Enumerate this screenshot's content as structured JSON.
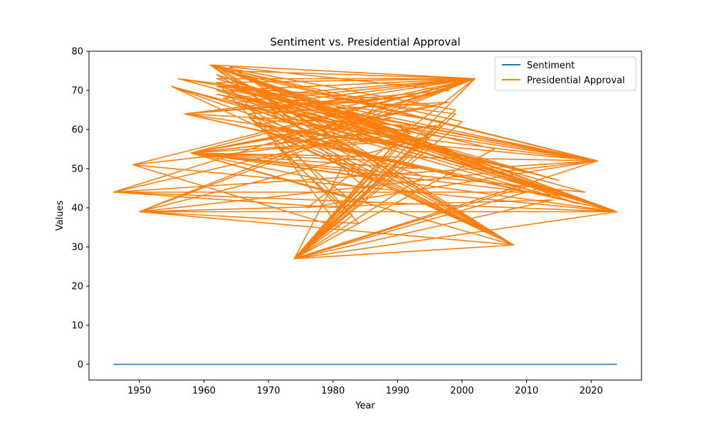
{
  "chart_data": {
    "type": "line",
    "title": "Sentiment vs. Presidential Approval",
    "xlabel": "Year",
    "ylabel": "Values",
    "xlim": [
      1942.2,
      2027.8
    ],
    "ylim": [
      -4,
      80
    ],
    "xticks": [
      1950,
      1960,
      1970,
      1980,
      1990,
      2000,
      2010,
      2020
    ],
    "yticks": [
      0,
      10,
      20,
      30,
      40,
      50,
      60,
      70,
      80
    ],
    "grid": false,
    "legend": "top-right",
    "series": [
      {
        "name": "Sentiment",
        "color": "#1f77b4",
        "x": [
          1946,
          2024
        ],
        "y": [
          0,
          0
        ]
      },
      {
        "name": "Presidential Approval",
        "color": "#ff7f0e",
        "x": [
          1961,
          2002,
          1974,
          2021,
          1958,
          2024,
          1950,
          2008,
          1964,
          1998,
          1957,
          2012,
          1946,
          1988,
          1965,
          2018,
          1955,
          1992,
          1974,
          2002,
          1961,
          2024,
          1949,
          1981,
          1966,
          1996,
          1958,
          2021,
          1974,
          2000,
          1962,
          2008,
          1969,
          1985,
          1958,
          2024,
          1961,
          1995,
          1950,
          2021,
          1976,
          2002,
          1962,
          2015,
          1956,
          1999,
          1974,
          1987,
          1962,
          2021,
          1966,
          2024,
          1961,
          2002,
          1957,
          1990,
          1974,
          2008,
          1968,
          1993,
          1958,
          2021,
          1961,
          2024,
          1972,
          1984,
          1950,
          2002,
          1964,
          2011,
          1974,
          1997,
          1958,
          2019,
          1962,
          2024,
          1946,
          2002,
          1974,
          1991,
          1961,
          2021,
          1966,
          2008,
          1955,
          1994,
          1974,
          2024,
          1961,
          2002,
          1958,
          1982,
          1967,
          2021,
          1974,
          2005,
          1962,
          2024,
          1957,
          1996,
          1970,
          2002,
          1961,
          2021,
          1974,
          2014,
          1950,
          1989,
          1958,
          2024,
          1963,
          2002,
          1974,
          1986,
          1961,
          2021,
          1969,
          2008,
          1958,
          1995,
          1974,
          2024,
          1962,
          2002,
          1949,
          1992,
          1966,
          2021,
          1974,
          1999,
          1961,
          2024,
          1958,
          2002,
          1971,
          1983,
          1974,
          2021,
          1962,
          2010,
          1956,
          1997,
          1974,
          2024,
          1961,
          2002,
          1965,
          1988,
          1958,
          2021,
          1974,
          2008,
          1962,
          2024,
          1950,
          2002,
          1968,
          1994,
          1974,
          2021,
          1961,
          2016,
          1958,
          1985,
          1974,
          2024,
          1963,
          2002,
          1957,
          1992,
          1974,
          2021,
          1961,
          2008,
          1967,
          1998,
          1958,
          2024,
          1974,
          2002,
          1962,
          1981,
          1946,
          2021,
          1974,
          2012,
          1961,
          2024,
          1958,
          2002,
          1972,
          1990,
          1974,
          2021,
          1964,
          2008,
          1958,
          1996,
          1974,
          2024,
          1961,
          2002
        ],
        "y": [
          76.5,
          73,
          27,
          52,
          54,
          39,
          39,
          30.5,
          76,
          70,
          64,
          44,
          44,
          60,
          72,
          41,
          71,
          55,
          27,
          73,
          76.5,
          39,
          51,
          35,
          68,
          66,
          54,
          52,
          27,
          62,
          76,
          30.5,
          69,
          45,
          54,
          39,
          76.5,
          58,
          39,
          52,
          40,
          73,
          72,
          47,
          73,
          64,
          27,
          68,
          71,
          52,
          74,
          39,
          76.5,
          73,
          64,
          56,
          27,
          30.5,
          62,
          50,
          54,
          52,
          76.5,
          39,
          58,
          36,
          39,
          73,
          75,
          46,
          27,
          61,
          54,
          44,
          70,
          39,
          44,
          73,
          27,
          57,
          76.5,
          52,
          66,
          30.5,
          71,
          48,
          27,
          39,
          76.5,
          73,
          54,
          43,
          63,
          52,
          27,
          55,
          72,
          39,
          64,
          69,
          65,
          73,
          76.5,
          52,
          27,
          42,
          39,
          63,
          54,
          39,
          70,
          73,
          27,
          47,
          76.5,
          52,
          60,
          30.5,
          54,
          58,
          27,
          39,
          73,
          73,
          51,
          59,
          71,
          52,
          27,
          65,
          76.5,
          39,
          54,
          73,
          56,
          38,
          27,
          52,
          69,
          49,
          73,
          62,
          27,
          39,
          76.5,
          73,
          67,
          52,
          54,
          52,
          27,
          30.5,
          74,
          39,
          39,
          73,
          61,
          55,
          27,
          52,
          76.5,
          43,
          54,
          48,
          27,
          39,
          68,
          73,
          64,
          61,
          27,
          52,
          76.5,
          30.5,
          64,
          67,
          54,
          39,
          27,
          73,
          72,
          40,
          44,
          52,
          27,
          45,
          76.5,
          39,
          54,
          73,
          55,
          57,
          27,
          52,
          70,
          30.5,
          54,
          61,
          27,
          39,
          76.5,
          73
        ]
      }
    ]
  }
}
